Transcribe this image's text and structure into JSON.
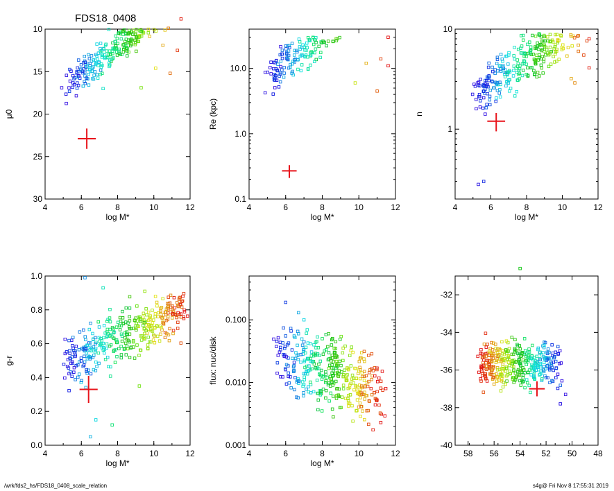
{
  "figure": {
    "title": "FDS18_0408",
    "footer_path": "/wrk/fds2_hs/FDS18_0408_scale_relation",
    "footer_stamp": "s4g@  Fri Nov  8 17:55:31 2019"
  },
  "chart_data": [
    {
      "type": "scatter",
      "id": "p1",
      "xlabel": "log M*",
      "ylabel": "μ0",
      "xlim": [
        4,
        12
      ],
      "ylim": [
        30,
        10
      ],
      "yscale": "linear",
      "xticks": [
        "4",
        "6",
        "8",
        "10",
        "12"
      ],
      "yticks": [
        "10",
        "15",
        "20",
        "25",
        "30"
      ],
      "cross": {
        "x": 6.3,
        "y": 22.9,
        "dx": 0.5,
        "dy": 1.2
      },
      "trend": {
        "x0": 5.2,
        "x1": 11.6,
        "a": 24.9,
        "b": -1.6,
        "spread": 1.5,
        "ymin": 9.6,
        "ymax": 26.4
      },
      "points": [
        [
          11.5,
          8.8
        ],
        [
          10.8,
          9.9
        ],
        [
          10.5,
          11.9
        ],
        [
          11.3,
          12.5
        ],
        [
          10.9,
          15.2
        ],
        [
          10.1,
          14.6
        ],
        [
          9.3,
          16.9
        ],
        [
          7.2,
          17.0
        ]
      ]
    },
    {
      "type": "scatter",
      "id": "p2",
      "xlabel": "log M*",
      "ylabel": "Re (kpc)",
      "xlim": [
        4,
        12
      ],
      "ylim": [
        0.1,
        40
      ],
      "yscale": "log",
      "xticks": [
        "4",
        "6",
        "8",
        "10",
        "12"
      ],
      "yticks": [
        "0.1",
        "1.0",
        "10.0"
      ],
      "cross": {
        "x": 6.2,
        "y": 0.27,
        "dx": 0.4,
        "dy": 0.06
      },
      "trend": {
        "x0": 5.0,
        "x1": 11.6,
        "a": -0.12,
        "b": 0.2,
        "spread": 0.22,
        "ymin": 0.16,
        "ymax": 30
      },
      "points": [
        [
          11.6,
          30.0
        ],
        [
          11.2,
          14.0
        ],
        [
          11.6,
          11.0
        ],
        [
          10.4,
          12.0
        ],
        [
          11.0,
          4.5
        ],
        [
          9.8,
          6.0
        ]
      ]
    },
    {
      "type": "scatter",
      "id": "p3",
      "xlabel": "log M*",
      "ylabel": "n",
      "xlim": [
        4,
        12
      ],
      "ylim": [
        0.2,
        10
      ],
      "yscale": "log",
      "xticks": [
        "4",
        "6",
        "8",
        "10",
        "12"
      ],
      "yticks": [
        "1",
        "10"
      ],
      "cross": {
        "x": 6.3,
        "y": 1.2,
        "dx": 0.5,
        "dy": 0.25
      },
      "trend": {
        "x0": 5.2,
        "x1": 11.6,
        "a": -0.25,
        "b": 0.12,
        "spread": 0.18,
        "ymin": 0.25,
        "ymax": 9
      },
      "points": [
        [
          11.5,
          8.0
        ],
        [
          11.2,
          5.5
        ],
        [
          10.9,
          6.0
        ],
        [
          11.5,
          4.1
        ],
        [
          10.5,
          3.2
        ],
        [
          10.7,
          2.9
        ],
        [
          7.0,
          5.5
        ],
        [
          5.6,
          0.3
        ],
        [
          5.3,
          0.28
        ]
      ]
    },
    {
      "type": "scatter",
      "id": "p4",
      "xlabel": "log M*",
      "ylabel": "g-r",
      "xlim": [
        4,
        12
      ],
      "ylim": [
        0.0,
        1.0
      ],
      "yscale": "linear",
      "xticks": [
        "4",
        "6",
        "8",
        "10",
        "12"
      ],
      "yticks": [
        "0.0",
        "0.2",
        "0.4",
        "0.6",
        "0.8",
        "1.0"
      ],
      "cross": {
        "x": 6.4,
        "y": 0.33,
        "dx": 0.5,
        "dy": 0.08
      },
      "trend": {
        "x0": 5.0,
        "x1": 11.7,
        "a": 0.24,
        "b": 0.05,
        "spread": 0.12,
        "ymin": 0.15,
        "ymax": 0.9
      },
      "points": [
        [
          6.2,
          0.99
        ],
        [
          7.2,
          0.93
        ],
        [
          9.5,
          0.91
        ],
        [
          10.8,
          0.82
        ],
        [
          11.6,
          0.88
        ],
        [
          6.5,
          0.05
        ],
        [
          7.7,
          0.12
        ],
        [
          6.8,
          0.15
        ],
        [
          9.2,
          0.35
        ]
      ]
    },
    {
      "type": "scatter",
      "id": "p5",
      "xlabel": "log M*",
      "ylabel": "flux: nuc/disk",
      "xlim": [
        4,
        12
      ],
      "ylim": [
        0.001,
        0.5
      ],
      "yscale": "log",
      "xticks": [
        "4",
        "6",
        "8",
        "10",
        "12"
      ],
      "yticks": [
        "0.001",
        "0.010",
        "0.100"
      ],
      "cross": null,
      "trend": {
        "x0": 5.5,
        "x1": 11.2,
        "a": -1.0,
        "b": -0.1,
        "spread": 0.45,
        "ymin": 0.0011,
        "ymax": 0.2
      },
      "points": [
        [
          6.0,
          0.19
        ],
        [
          6.7,
          0.13
        ],
        [
          7.0,
          0.1
        ],
        [
          6.7,
          0.06
        ],
        [
          8.0,
          0.05
        ],
        [
          8.7,
          0.03
        ],
        [
          6.1,
          0.04
        ],
        [
          10.3,
          0.015
        ],
        [
          11.2,
          0.0023
        ]
      ]
    },
    {
      "type": "scatter",
      "id": "p6",
      "xlabel": "",
      "ylabel": "",
      "xlim": [
        59,
        48
      ],
      "ylim": [
        -40,
        -31
      ],
      "yscale": "linear",
      "xticks": [
        "58",
        "56",
        "54",
        "52",
        "50",
        "48"
      ],
      "yticks": [
        "-32",
        "-34",
        "-36",
        "-38",
        "-40"
      ],
      "cross": {
        "x": 52.7,
        "y": -37.0,
        "dx": 0.6,
        "dy": 0.4
      },
      "trend": {
        "x0": 50.8,
        "x1": 57.0,
        "a": -35.6,
        "b": 0.0,
        "spread": 0.9,
        "ymin": -38.4,
        "ymax": -33.0
      },
      "points": [
        [
          54.0,
          -30.6
        ],
        [
          56.4,
          -35.2
        ],
        [
          55.4,
          -34.5
        ],
        [
          50.5,
          -37.3
        ],
        [
          50.9,
          -37.8
        ]
      ]
    }
  ]
}
